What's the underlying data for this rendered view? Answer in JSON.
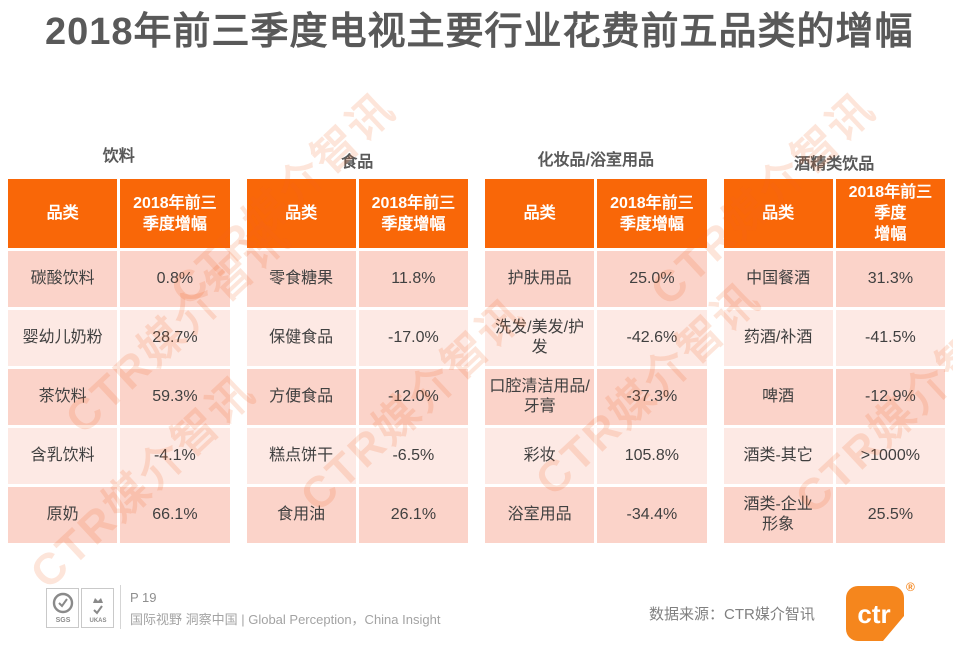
{
  "slide": {
    "title": "2018年前三季度电视主要行业花费前五品类的增幅"
  },
  "tables": [
    {
      "caption": "饮料",
      "col_category": "品类",
      "col_growth": "2018年前三\n季度增幅",
      "rows": [
        {
          "category": "碳酸饮料",
          "growth": "0.8%"
        },
        {
          "category": "婴幼儿奶粉",
          "growth": "28.7%"
        },
        {
          "category": "茶饮料",
          "growth": "59.3%"
        },
        {
          "category": "含乳饮料",
          "growth": "-4.1%"
        },
        {
          "category": "原奶",
          "growth": "66.1%"
        }
      ]
    },
    {
      "caption": "食品",
      "col_category": "品类",
      "col_growth": "2018年前三\n季度增幅",
      "rows": [
        {
          "category": "零食糖果",
          "growth": "11.8%"
        },
        {
          "category": "保健食品",
          "growth": "-17.0%"
        },
        {
          "category": "方便食品",
          "growth": "-12.0%"
        },
        {
          "category": "糕点饼干",
          "growth": "-6.5%"
        },
        {
          "category": "食用油",
          "growth": "26.1%"
        }
      ]
    },
    {
      "caption": "化妆品/浴室用品",
      "col_category": "品类",
      "col_growth": "2018年前三\n季度增幅",
      "rows": [
        {
          "category": "护肤用品",
          "growth": "25.0%"
        },
        {
          "category": "洗发/美发/护发",
          "growth": "-42.6%"
        },
        {
          "category": "口腔清洁用品/\n牙膏",
          "growth": "-37.3%"
        },
        {
          "category": "彩妆",
          "growth": "105.8%"
        },
        {
          "category": "浴室用品",
          "growth": "-34.4%"
        }
      ]
    },
    {
      "caption": "酒精类饮品",
      "col_category": "品类",
      "col_growth": "2018年前三\n季度\n增幅",
      "rows": [
        {
          "category": "中国餐酒",
          "growth": "31.3%"
        },
        {
          "category": "药酒/补酒",
          "growth": "-41.5%"
        },
        {
          "category": "啤酒",
          "growth": "-12.9%"
        },
        {
          "category": "酒类-其它",
          "growth": ">1000%"
        },
        {
          "category": "酒类-企业\n形象",
          "growth": "25.5%"
        }
      ]
    }
  ],
  "watermark": {
    "text": "CTR媒介智讯"
  },
  "footer": {
    "page_label": "P 19",
    "tagline": "国际视野 洞察中国 | Global Perception，China Insight",
    "source": "数据来源：CTR媒介智讯",
    "logo_text": "ctr",
    "registered_mark": "®",
    "cert_sgs": "SGS",
    "cert_ukas": "UKAS"
  },
  "colors": {
    "header_bg": "#f96708",
    "row_odd": "#fbd3c9",
    "row_even": "#fde9e4",
    "title_text": "#595959",
    "logo_orange": "#f5861d",
    "watermark_orange": "#f26522"
  }
}
